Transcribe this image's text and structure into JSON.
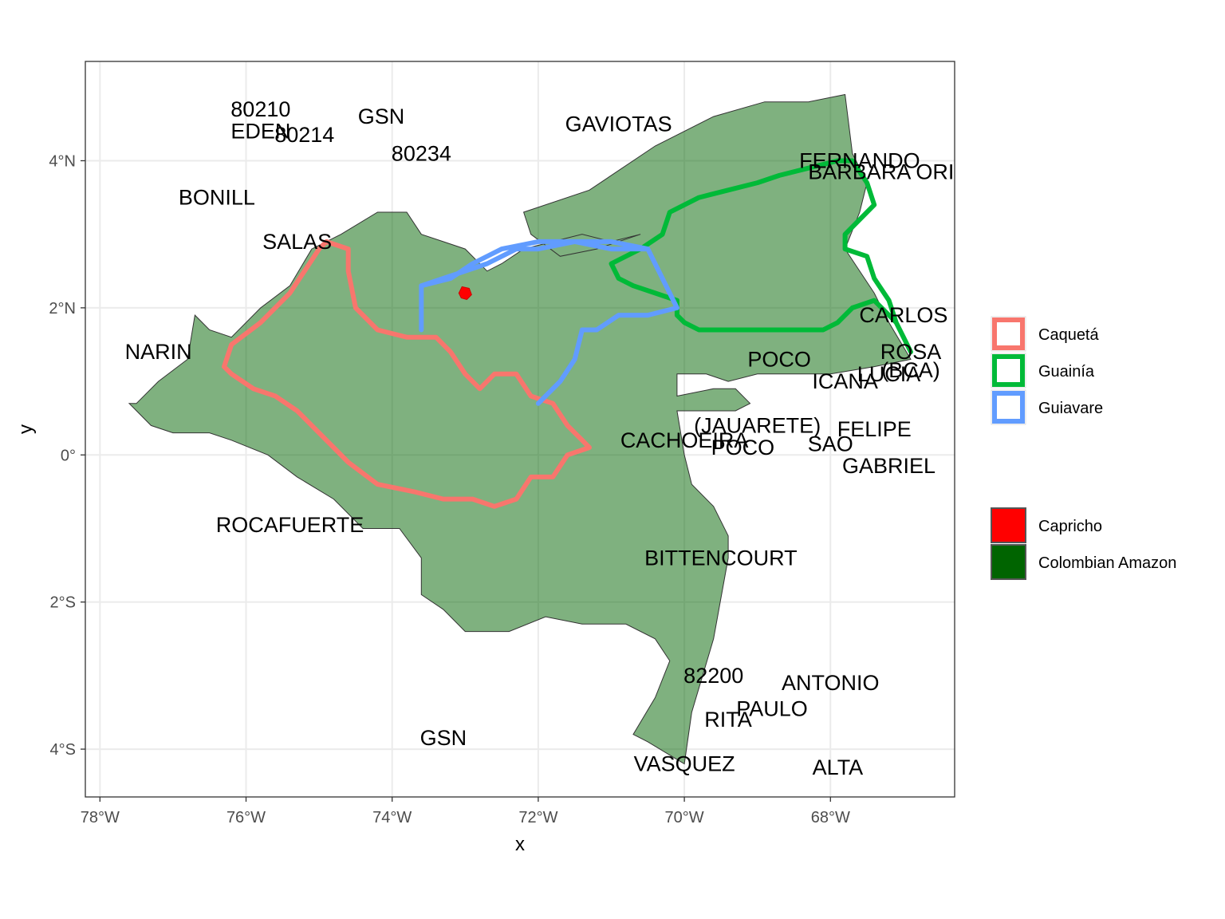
{
  "axes": {
    "x_title": "x",
    "y_title": "y",
    "x_ticks": [
      {
        "value": -78,
        "label": "78°W"
      },
      {
        "value": -76,
        "label": "76°W"
      },
      {
        "value": -74,
        "label": "74°W"
      },
      {
        "value": -72,
        "label": "72°W"
      },
      {
        "value": -70,
        "label": "70°W"
      },
      {
        "value": -68,
        "label": "68°W"
      }
    ],
    "y_ticks": [
      {
        "value": 4,
        "label": "4°N"
      },
      {
        "value": 2,
        "label": "2°N"
      },
      {
        "value": 0,
        "label": "0°"
      },
      {
        "value": -2,
        "label": "2°S"
      },
      {
        "value": -4,
        "label": "4°S"
      }
    ]
  },
  "chart_data": {
    "type": "map",
    "xlim": [
      -78.2,
      -66.3
    ],
    "ylim": [
      -4.65,
      5.35
    ],
    "grid": true,
    "legend_position": "right",
    "colors": {
      "caqueta": "#f8766d",
      "guainia": "#00ba38",
      "guiavare": "#619cff",
      "capricho": "#ff0000",
      "colombian_amazon": "#006400"
    },
    "amazon_region": [
      [
        -77.5,
        0.7
      ],
      [
        -77.2,
        1.0
      ],
      [
        -76.8,
        1.3
      ],
      [
        -76.7,
        1.9
      ],
      [
        -76.5,
        1.7
      ],
      [
        -76.2,
        1.6
      ],
      [
        -75.8,
        2.0
      ],
      [
        -75.4,
        2.3
      ],
      [
        -75.1,
        2.8
      ],
      [
        -74.7,
        3.0
      ],
      [
        -74.2,
        3.3
      ],
      [
        -73.8,
        3.3
      ],
      [
        -73.6,
        3.0
      ],
      [
        -73.3,
        2.9
      ],
      [
        -73.0,
        2.8
      ],
      [
        -72.7,
        2.5
      ],
      [
        -72.5,
        2.6
      ],
      [
        -72.2,
        2.8
      ],
      [
        -71.8,
        2.9
      ],
      [
        -71.4,
        3.0
      ],
      [
        -71.0,
        2.9
      ],
      [
        -70.6,
        3.0
      ],
      [
        -71.2,
        2.8
      ],
      [
        -71.7,
        2.7
      ],
      [
        -72.1,
        3.0
      ],
      [
        -72.2,
        3.3
      ],
      [
        -71.3,
        3.6
      ],
      [
        -70.4,
        4.2
      ],
      [
        -69.6,
        4.6
      ],
      [
        -68.9,
        4.8
      ],
      [
        -68.3,
        4.8
      ],
      [
        -67.8,
        4.9
      ],
      [
        -67.7,
        4.1
      ],
      [
        -67.5,
        3.7
      ],
      [
        -67.6,
        3.3
      ],
      [
        -67.8,
        2.8
      ],
      [
        -67.4,
        2.2
      ],
      [
        -67.2,
        1.8
      ],
      [
        -66.9,
        1.3
      ],
      [
        -67.4,
        1.2
      ],
      [
        -68.0,
        1.1
      ],
      [
        -68.5,
        1.1
      ],
      [
        -69.0,
        1.1
      ],
      [
        -69.4,
        1.0
      ],
      [
        -69.7,
        1.1
      ],
      [
        -70.1,
        1.1
      ],
      [
        -70.1,
        0.8
      ],
      [
        -69.6,
        0.9
      ],
      [
        -69.3,
        0.9
      ],
      [
        -69.1,
        0.7
      ],
      [
        -69.3,
        0.6
      ],
      [
        -69.7,
        0.6
      ],
      [
        -70.1,
        0.6
      ],
      [
        -70.0,
        0.0
      ],
      [
        -69.9,
        -0.4
      ],
      [
        -69.6,
        -0.7
      ],
      [
        -69.4,
        -1.1
      ],
      [
        -69.4,
        -1.4
      ],
      [
        -69.6,
        -2.5
      ],
      [
        -69.9,
        -3.5
      ],
      [
        -70.0,
        -4.2
      ],
      [
        -70.5,
        -3.9
      ],
      [
        -70.7,
        -3.8
      ],
      [
        -70.4,
        -3.3
      ],
      [
        -70.2,
        -2.8
      ],
      [
        -70.4,
        -2.5
      ],
      [
        -70.8,
        -2.3
      ],
      [
        -71.4,
        -2.3
      ],
      [
        -71.9,
        -2.2
      ],
      [
        -72.4,
        -2.4
      ],
      [
        -73.0,
        -2.4
      ],
      [
        -73.3,
        -2.1
      ],
      [
        -73.6,
        -1.9
      ],
      [
        -73.6,
        -1.4
      ],
      [
        -73.9,
        -1.0
      ],
      [
        -74.4,
        -1.0
      ],
      [
        -74.8,
        -0.6
      ],
      [
        -75.3,
        -0.3
      ],
      [
        -75.7,
        0.0
      ],
      [
        -76.2,
        0.2
      ],
      [
        -76.5,
        0.3
      ],
      [
        -77.0,
        0.3
      ],
      [
        -77.3,
        0.4
      ],
      [
        -77.6,
        0.7
      ]
    ],
    "series": [
      {
        "name": "Caquetá",
        "path": [
          [
            -74.9,
            2.9
          ],
          [
            -74.6,
            2.8
          ],
          [
            -74.6,
            2.5
          ],
          [
            -74.5,
            2.0
          ],
          [
            -74.2,
            1.7
          ],
          [
            -73.8,
            1.6
          ],
          [
            -73.4,
            1.6
          ],
          [
            -73.2,
            1.4
          ],
          [
            -73.0,
            1.1
          ],
          [
            -72.8,
            0.9
          ],
          [
            -72.6,
            1.1
          ],
          [
            -72.3,
            1.1
          ],
          [
            -72.1,
            0.8
          ],
          [
            -71.8,
            0.7
          ],
          [
            -71.6,
            0.4
          ],
          [
            -71.4,
            0.2
          ],
          [
            -71.3,
            0.1
          ],
          [
            -71.6,
            0.0
          ],
          [
            -71.8,
            -0.3
          ],
          [
            -72.1,
            -0.3
          ],
          [
            -72.3,
            -0.6
          ],
          [
            -72.6,
            -0.7
          ],
          [
            -72.9,
            -0.6
          ],
          [
            -73.3,
            -0.6
          ],
          [
            -73.7,
            -0.5
          ],
          [
            -74.2,
            -0.4
          ],
          [
            -74.6,
            -0.1
          ],
          [
            -74.8,
            0.1
          ],
          [
            -75.0,
            0.3
          ],
          [
            -75.3,
            0.6
          ],
          [
            -75.6,
            0.8
          ],
          [
            -75.9,
            0.9
          ],
          [
            -76.2,
            1.1
          ],
          [
            -76.3,
            1.2
          ],
          [
            -76.2,
            1.5
          ],
          [
            -75.8,
            1.8
          ],
          [
            -75.4,
            2.2
          ],
          [
            -75.2,
            2.5
          ],
          [
            -75.0,
            2.8
          ],
          [
            -74.9,
            2.9
          ]
        ]
      },
      {
        "name": "Guainía",
        "path": [
          [
            -71.0,
            2.6
          ],
          [
            -70.6,
            2.8
          ],
          [
            -70.3,
            3.0
          ],
          [
            -70.2,
            3.3
          ],
          [
            -69.8,
            3.5
          ],
          [
            -69.4,
            3.6
          ],
          [
            -69.0,
            3.7
          ],
          [
            -68.7,
            3.8
          ],
          [
            -68.3,
            3.9
          ],
          [
            -67.9,
            4.0
          ],
          [
            -67.7,
            4.0
          ],
          [
            -67.5,
            3.7
          ],
          [
            -67.4,
            3.4
          ],
          [
            -67.8,
            3.0
          ],
          [
            -67.8,
            2.8
          ],
          [
            -67.5,
            2.7
          ],
          [
            -67.4,
            2.4
          ],
          [
            -67.2,
            2.1
          ],
          [
            -67.1,
            1.8
          ],
          [
            -67.0,
            1.6
          ],
          [
            -66.9,
            1.4
          ],
          [
            -67.1,
            1.8
          ],
          [
            -67.4,
            2.1
          ],
          [
            -67.7,
            2.0
          ],
          [
            -67.9,
            1.8
          ],
          [
            -68.1,
            1.7
          ],
          [
            -68.2,
            1.7
          ],
          [
            -68.6,
            1.7
          ],
          [
            -69.0,
            1.7
          ],
          [
            -69.5,
            1.7
          ],
          [
            -69.8,
            1.7
          ],
          [
            -70.0,
            1.8
          ],
          [
            -70.1,
            1.9
          ],
          [
            -70.1,
            2.1
          ],
          [
            -70.4,
            2.2
          ],
          [
            -70.7,
            2.3
          ],
          [
            -70.9,
            2.4
          ],
          [
            -71.0,
            2.6
          ]
        ]
      },
      {
        "name": "Guiavare",
        "path": [
          [
            -70.5,
            2.8
          ],
          [
            -71.0,
            2.9
          ],
          [
            -71.5,
            2.9
          ],
          [
            -72.0,
            2.8
          ],
          [
            -72.3,
            2.8
          ],
          [
            -72.7,
            2.6
          ],
          [
            -73.0,
            2.5
          ],
          [
            -73.3,
            2.4
          ],
          [
            -73.6,
            2.3
          ],
          [
            -73.6,
            1.7
          ],
          [
            -73.6,
            2.3
          ],
          [
            -73.2,
            2.4
          ],
          [
            -72.9,
            2.6
          ],
          [
            -72.5,
            2.8
          ],
          [
            -72.0,
            2.9
          ],
          [
            -71.5,
            2.9
          ],
          [
            -71.0,
            2.8
          ],
          [
            -70.5,
            2.8
          ],
          [
            -70.1,
            2.0
          ],
          [
            -70.5,
            1.9
          ],
          [
            -70.9,
            1.9
          ],
          [
            -71.2,
            1.7
          ],
          [
            -71.4,
            1.7
          ],
          [
            -71.5,
            1.3
          ],
          [
            -71.7,
            1.0
          ],
          [
            -71.9,
            0.8
          ],
          [
            -72.0,
            0.7
          ]
        ]
      },
      {
        "name": "Capricho",
        "center": [
          -73.0,
          2.2
        ]
      },
      {
        "name": "Colombian Amazon"
      }
    ],
    "labels": [
      {
        "text": "80210",
        "x": -75.8,
        "y": 4.7
      },
      {
        "text": "EDEN",
        "x": -75.8,
        "y": 4.4
      },
      {
        "text": "80214",
        "x": -75.2,
        "y": 4.35
      },
      {
        "text": "GSN",
        "x": -74.15,
        "y": 4.6
      },
      {
        "text": "80234",
        "x": -73.6,
        "y": 4.1
      },
      {
        "text": "GAVIOTAS",
        "x": -70.9,
        "y": 4.5
      },
      {
        "text": "FERNANDO",
        "x": -67.6,
        "y": 4.0
      },
      {
        "text": "BARBARA ORIN",
        "x": -67.2,
        "y": 3.85
      },
      {
        "text": "BONILL",
        "x": -76.4,
        "y": 3.5
      },
      {
        "text": "SALAS",
        "x": -75.3,
        "y": 2.9
      },
      {
        "text": "NARIN",
        "x": -77.2,
        "y": 1.4
      },
      {
        "text": "CARLOS",
        "x": -67.0,
        "y": 1.9
      },
      {
        "text": "ROSA",
        "x": -66.9,
        "y": 1.4
      },
      {
        "text": "(BCA)",
        "x": -66.9,
        "y": 1.15
      },
      {
        "text": "LUCIA",
        "x": -67.2,
        "y": 1.1
      },
      {
        "text": "POCO",
        "x": -68.7,
        "y": 1.3
      },
      {
        "text": "ICANA",
        "x": -67.8,
        "y": 1.0
      },
      {
        "text": "(JAUARETE)",
        "x": -69.0,
        "y": 0.4
      },
      {
        "text": "FELIPE",
        "x": -67.4,
        "y": 0.35
      },
      {
        "text": "CACHOEIRA",
        "x": -70.0,
        "y": 0.2
      },
      {
        "text": "POCO",
        "x": -69.2,
        "y": 0.1
      },
      {
        "text": "SAO",
        "x": -68.0,
        "y": 0.15
      },
      {
        "text": "GABRIEL",
        "x": -67.2,
        "y": -0.15
      },
      {
        "text": "ROCAFUERTE",
        "x": -75.4,
        "y": -0.95
      },
      {
        "text": "BITTENCOURT",
        "x": -69.5,
        "y": -1.4
      },
      {
        "text": "82200",
        "x": -69.6,
        "y": -3.0
      },
      {
        "text": "ANTONIO",
        "x": -68.0,
        "y": -3.1
      },
      {
        "text": "PAULO",
        "x": -68.8,
        "y": -3.45
      },
      {
        "text": "RITA",
        "x": -69.4,
        "y": -3.6
      },
      {
        "text": "GSN",
        "x": -73.3,
        "y": -3.85
      },
      {
        "text": "VASQUEZ",
        "x": -70.0,
        "y": -4.2
      },
      {
        "text": "ALTA",
        "x": -67.9,
        "y": -4.25
      }
    ]
  },
  "legend": {
    "items": [
      {
        "label": "Caquetá",
        "kind": "outline",
        "color": "#f8766d"
      },
      {
        "label": "Guainía",
        "kind": "outline",
        "color": "#00ba38"
      },
      {
        "label": "Guiavare",
        "kind": "outline",
        "color": "#619cff"
      }
    ],
    "fill_items": [
      {
        "label": "Capricho",
        "kind": "fill",
        "color": "#ff0000"
      },
      {
        "label": "Colombian Amazon",
        "kind": "fill",
        "color": "#006400"
      }
    ]
  }
}
